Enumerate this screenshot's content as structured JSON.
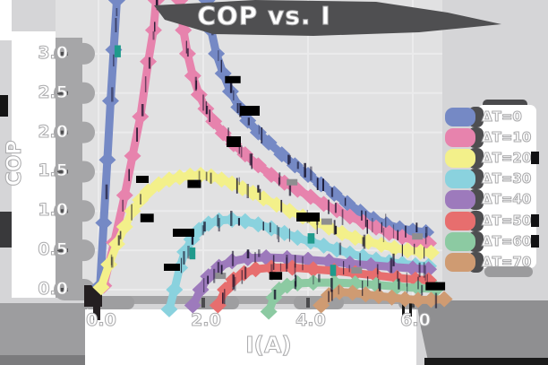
{
  "title": "COP vs. I",
  "axes": {
    "x": {
      "label": "I(A)",
      "ticks": [
        "0.0",
        "2.0",
        "4.0",
        "6.0"
      ],
      "tick_values": [
        0,
        2,
        4,
        6
      ]
    },
    "y": {
      "label": "COP",
      "ticks": [
        "3.0",
        "2.5",
        "2.0",
        "1.5",
        "1.0",
        "0.5",
        "0.0"
      ],
      "tick_values": [
        3.0,
        2.5,
        2.0,
        1.5,
        1.0,
        0.5,
        0.0
      ]
    }
  },
  "chart_data": {
    "type": "line",
    "title": "COP vs. I",
    "xlabel": "I(A)",
    "ylabel": "COP",
    "xlim": [
      -0.2,
      6.9
    ],
    "ylim": [
      -0.35,
      3.7
    ],
    "grid": true,
    "legend_position": "right",
    "marker": "diamond",
    "note": "COP of thermoelectric cooler vs drive current for temperature differences; ΔT=0 and ΔT=10 curves exceed the visible top of the plot between their rising and falling branches.",
    "series": [
      {
        "key": "dt-0",
        "name": "ΔT=0",
        "color": "#7589c5",
        "points": [
          [
            0.03,
            0.05
          ],
          [
            0.1,
            0.85
          ],
          [
            0.17,
            1.65
          ],
          [
            0.23,
            2.4
          ],
          [
            0.29,
            3.05
          ],
          [
            0.35,
            3.68
          ],
          [
            0.55,
            4.6
          ],
          [
            1.85,
            4.6
          ],
          [
            2.07,
            3.68
          ],
          [
            2.15,
            3.3
          ],
          [
            2.25,
            3.0
          ],
          [
            2.38,
            2.75
          ],
          [
            2.52,
            2.52
          ],
          [
            2.68,
            2.32
          ],
          [
            2.85,
            2.15
          ],
          [
            3.05,
            2.0
          ],
          [
            3.25,
            1.87
          ],
          [
            3.5,
            1.72
          ],
          [
            3.75,
            1.58
          ],
          [
            4.0,
            1.46
          ],
          [
            4.25,
            1.34
          ],
          [
            4.5,
            1.22
          ],
          [
            4.75,
            1.1
          ],
          [
            5.0,
            0.99
          ],
          [
            5.25,
            0.9
          ],
          [
            5.5,
            0.83
          ],
          [
            5.75,
            0.78
          ],
          [
            6.0,
            0.75
          ],
          [
            6.25,
            0.73
          ]
        ]
      },
      {
        "key": "dt-10",
        "name": "ΔT=10",
        "color": "#e783ad",
        "points": [
          [
            0.1,
            0.05
          ],
          [
            0.3,
            0.6
          ],
          [
            0.5,
            1.2
          ],
          [
            0.65,
            1.7
          ],
          [
            0.8,
            2.2
          ],
          [
            0.95,
            2.9
          ],
          [
            1.05,
            3.3
          ],
          [
            1.1,
            3.68
          ],
          [
            1.22,
            4.3
          ],
          [
            1.43,
            4.3
          ],
          [
            1.55,
            3.68
          ],
          [
            1.62,
            3.3
          ],
          [
            1.7,
            3.0
          ],
          [
            1.8,
            2.72
          ],
          [
            1.92,
            2.48
          ],
          [
            2.05,
            2.3
          ],
          [
            2.2,
            2.14
          ],
          [
            2.38,
            1.99
          ],
          [
            2.58,
            1.85
          ],
          [
            2.8,
            1.72
          ],
          [
            3.05,
            1.58
          ],
          [
            3.3,
            1.46
          ],
          [
            3.55,
            1.36
          ],
          [
            3.8,
            1.27
          ],
          [
            4.05,
            1.18
          ],
          [
            4.3,
            1.09
          ],
          [
            4.55,
            1.01
          ],
          [
            4.8,
            0.93
          ],
          [
            5.05,
            0.86
          ],
          [
            5.3,
            0.79
          ],
          [
            5.55,
            0.72
          ],
          [
            5.8,
            0.67
          ],
          [
            6.05,
            0.62
          ],
          [
            6.3,
            0.59
          ]
        ]
      },
      {
        "key": "dt-20",
        "name": "ΔT=20",
        "color": "#f3f08a",
        "points": [
          [
            0.05,
            0.03
          ],
          [
            0.2,
            0.32
          ],
          [
            0.35,
            0.58
          ],
          [
            0.5,
            0.8
          ],
          [
            0.65,
            1.0
          ],
          [
            0.8,
            1.14
          ],
          [
            0.95,
            1.25
          ],
          [
            1.15,
            1.34
          ],
          [
            1.35,
            1.4
          ],
          [
            1.55,
            1.43
          ],
          [
            1.75,
            1.45
          ],
          [
            1.95,
            1.46
          ],
          [
            2.15,
            1.44
          ],
          [
            2.35,
            1.4
          ],
          [
            2.55,
            1.35
          ],
          [
            2.75,
            1.29
          ],
          [
            2.95,
            1.23
          ],
          [
            3.15,
            1.16
          ],
          [
            3.4,
            1.08
          ],
          [
            3.65,
            1.0
          ],
          [
            3.9,
            0.93
          ],
          [
            4.15,
            0.86
          ],
          [
            4.4,
            0.79
          ],
          [
            4.65,
            0.72
          ],
          [
            4.9,
            0.66
          ],
          [
            5.15,
            0.61
          ],
          [
            5.4,
            0.57
          ],
          [
            5.65,
            0.53
          ],
          [
            5.9,
            0.5
          ],
          [
            6.15,
            0.48
          ],
          [
            6.35,
            0.47
          ]
        ]
      },
      {
        "key": "dt-30",
        "name": "ΔT=30",
        "color": "#8ad2de",
        "points": [
          [
            1.35,
            -0.25
          ],
          [
            1.45,
            0.0
          ],
          [
            1.55,
            0.28
          ],
          [
            1.65,
            0.48
          ],
          [
            1.78,
            0.64
          ],
          [
            1.92,
            0.76
          ],
          [
            2.1,
            0.84
          ],
          [
            2.3,
            0.88
          ],
          [
            2.55,
            0.89
          ],
          [
            2.8,
            0.87
          ],
          [
            3.05,
            0.83
          ],
          [
            3.3,
            0.78
          ],
          [
            3.55,
            0.72
          ],
          [
            3.8,
            0.66
          ],
          [
            4.05,
            0.61
          ],
          [
            4.3,
            0.56
          ],
          [
            4.55,
            0.51
          ],
          [
            4.8,
            0.46
          ],
          [
            5.05,
            0.42
          ],
          [
            5.3,
            0.38
          ],
          [
            5.55,
            0.35
          ],
          [
            5.8,
            0.33
          ],
          [
            6.05,
            0.31
          ],
          [
            6.3,
            0.3
          ]
        ]
      },
      {
        "key": "dt-40",
        "name": "ΔT=40",
        "color": "#9d7abc",
        "points": [
          [
            1.8,
            -0.2
          ],
          [
            1.95,
            0.0
          ],
          [
            2.1,
            0.17
          ],
          [
            2.3,
            0.29
          ],
          [
            2.55,
            0.36
          ],
          [
            2.85,
            0.4
          ],
          [
            3.2,
            0.41
          ],
          [
            3.6,
            0.4
          ],
          [
            4.0,
            0.38
          ],
          [
            4.4,
            0.36
          ],
          [
            4.8,
            0.33
          ],
          [
            5.2,
            0.31
          ],
          [
            5.6,
            0.29
          ],
          [
            6.0,
            0.27
          ],
          [
            6.3,
            0.26
          ]
        ]
      },
      {
        "key": "dt-50",
        "name": "ΔT=50",
        "color": "#e76e6e",
        "points": [
          [
            2.28,
            -0.2
          ],
          [
            2.42,
            0.0
          ],
          [
            2.58,
            0.13
          ],
          [
            2.78,
            0.21
          ],
          [
            3.0,
            0.26
          ],
          [
            3.3,
            0.28
          ],
          [
            3.7,
            0.28
          ],
          [
            4.1,
            0.26
          ],
          [
            4.5,
            0.24
          ],
          [
            4.9,
            0.21
          ],
          [
            5.3,
            0.18
          ],
          [
            5.7,
            0.15
          ],
          [
            6.05,
            0.13
          ],
          [
            6.3,
            0.12
          ]
        ]
      },
      {
        "key": "dt-60",
        "name": "ΔT=60",
        "color": "#8ccaa2",
        "points": [
          [
            3.25,
            -0.28
          ],
          [
            3.35,
            -0.1
          ],
          [
            3.45,
            0.0
          ],
          [
            3.6,
            0.05
          ],
          [
            3.8,
            0.08
          ],
          [
            4.1,
            0.09
          ],
          [
            4.5,
            0.09
          ],
          [
            4.9,
            0.08
          ],
          [
            5.3,
            0.06
          ],
          [
            5.7,
            0.04
          ],
          [
            6.1,
            0.02
          ],
          [
            6.45,
            0.01
          ]
        ]
      },
      {
        "key": "dt-70",
        "name": "ΔT=70",
        "color": "#cf9b72",
        "points": [
          [
            4.25,
            -0.2
          ],
          [
            4.4,
            -0.07
          ],
          [
            4.6,
            -0.03
          ],
          [
            4.85,
            -0.04
          ],
          [
            5.1,
            -0.06
          ],
          [
            5.35,
            -0.08
          ],
          [
            5.6,
            -0.1
          ],
          [
            5.85,
            -0.12
          ],
          [
            6.1,
            -0.13
          ],
          [
            6.35,
            -0.13
          ],
          [
            6.6,
            -0.12
          ]
        ]
      }
    ]
  }
}
